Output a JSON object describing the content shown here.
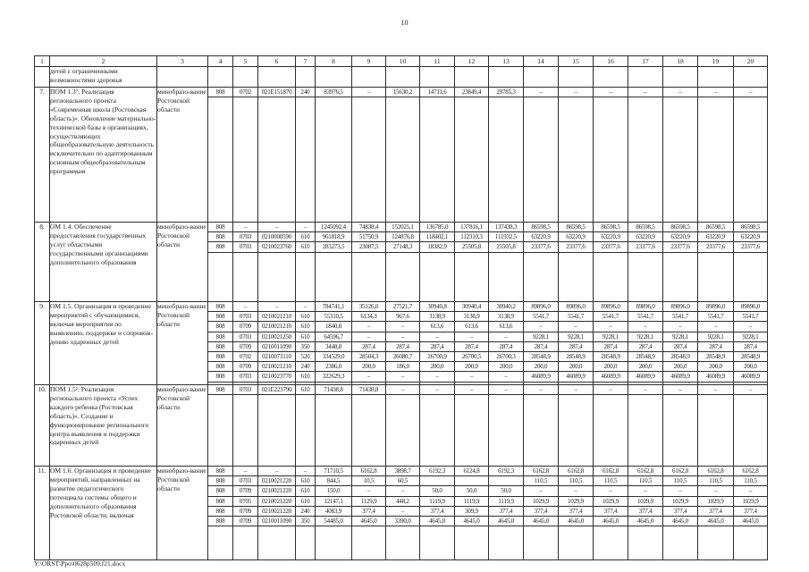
{
  "page": {
    "number": "10",
    "footer": "Y:\\ORST\\Ppo\\0628p509.f21.docx"
  },
  "table": {
    "header_cols": [
      "1",
      "2",
      "3",
      "4",
      "5",
      "6",
      "7",
      "8",
      "9",
      "10",
      "11",
      "12",
      "13",
      "14",
      "15",
      "16",
      "17",
      "18",
      "19",
      "20"
    ],
    "rows": [
      {
        "num": "",
        "name": "детей с ограниченными возможностями здоровья",
        "executor": "",
        "lines": []
      },
      {
        "num": "7.",
        "name": "ПОМ 1.3⁷. Реализация регионального проекта «Современная школа (Ростовская область)». Обновление материально-технической базы в организациях, осуществляющих общеобразовательную деятельность исключительно по адаптированным основным общеобразовательным программам",
        "executor": "минобразо-вание Ростовской области",
        "lines": [
          [
            "808",
            "0702",
            "021E151870",
            "240",
            "83976,5",
            "–",
            "15630,2",
            "14711,6",
            "23849,4",
            "29785,3",
            "–",
            "–",
            "–",
            "–",
            "–",
            "–",
            "–"
          ]
        ]
      },
      {
        "num": "8.",
        "name": "ОМ 1.4. Обеспечение предоставления государственных услуг областными государственными организациями дополнительного образования",
        "executor": "минобразо-вание Ростовской области",
        "lines": [
          [
            "808",
            "–",
            "–",
            "–",
            "1245092,4",
            "74838,4",
            "152025,1",
            "136785,0",
            "137816,1",
            "137438,3",
            "86598,5",
            "86598,5",
            "86598,5",
            "86598,5",
            "86598,5",
            "86598,5",
            "86598,5"
          ],
          [
            "808",
            "0703",
            "0210000590",
            "610",
            "961818,9",
            "51750,9",
            "124876,8",
            "118402,1",
            "112310,3",
            "111932,5",
            "63220,9",
            "63220,9",
            "63220,9",
            "63220,9",
            "63220,9",
            "63220,9",
            "63220,9"
          ],
          [
            "808",
            "0703",
            "0210023760",
            "610",
            "283273,5",
            "23087,5",
            "27148,3",
            "18382,9",
            "25505,8",
            "25505,8",
            "23377,6",
            "23377,6",
            "23377,6",
            "23377,6",
            "23377,6",
            "23377,6",
            "23377,6"
          ]
        ]
      },
      {
        "num": "9.",
        "name": "ОМ 1.5. Организация и проведение мероприятий с обучающимися, включая мероприятия по выявлению, поддержке и сопровож-дению одаренных детей",
        "executor": "минобразо-вание Ростовской области",
        "lines": [
          [
            "808",
            "–",
            "–",
            "–",
            "784741,1",
            "35126,0",
            "27521,7",
            "30940,8",
            "30940,4",
            "30940,2",
            "89896,0",
            "89896,0",
            "89896,0",
            "89896,0",
            "89896,0",
            "89896,0",
            "89896,0"
          ],
          [
            "808",
            "0703",
            "0210021210",
            "610",
            "55310,5",
            "6134,3",
            "967,6",
            "3138,9",
            "3138,9",
            "3138,9",
            "5541,7",
            "5541,7",
            "5541,7",
            "5541,7",
            "5541,7",
            "5541,7",
            "5541,7"
          ],
          [
            "808",
            "0709",
            "0210021210",
            "610",
            "1840,8",
            "–",
            "–",
            "613,6",
            "613,6",
            "613,6",
            "–",
            "–",
            "–",
            "–",
            "–",
            "–",
            "–"
          ],
          [
            "808",
            "0703",
            "0210021250",
            "610",
            "64596,7",
            "–",
            "–",
            "–",
            "–",
            "–",
            "9228,1",
            "9228,1",
            "9228,1",
            "9228,1",
            "9228,1",
            "9228,1",
            "9228,1"
          ],
          [
            "808",
            "0709",
            "0210011090",
            "350",
            "3448,8",
            "287,4",
            "287,4",
            "287,4",
            "287,4",
            "287,4",
            "287,4",
            "287,4",
            "287,4",
            "287,4",
            "287,4",
            "287,4",
            "287,4"
          ],
          [
            "808",
            "0702",
            "0210073110",
            "520",
            "334529,0",
            "28504,3",
            "26080,7",
            "26700,9",
            "26700,5",
            "26700,3",
            "28548,9",
            "28548,9",
            "28548,9",
            "28548,9",
            "28548,9",
            "28548,9",
            "28548,9"
          ],
          [
            "808",
            "0709",
            "0210021210",
            "240",
            "2386,0",
            "200,0",
            "186,0",
            "200,0",
            "200,0",
            "200,0",
            "200,0",
            "200,0",
            "200,0",
            "200,0",
            "200,0",
            "200,0",
            "200,0"
          ],
          [
            "808",
            "0703",
            "0210023770",
            "610",
            "322629,3",
            "–",
            "–",
            "–",
            "–",
            "–",
            "46089,9",
            "46089,9",
            "46089,9",
            "46089,9",
            "46089,9",
            "46089,9",
            "46089,9"
          ]
        ]
      },
      {
        "num": "10.",
        "name": "ПОМ 1.5². Реализация регионального проекта «Успех каждого ребенка (Ростовская область)». Создание и функционирование регионального центра выявления и поддержки одаренных детей",
        "executor": "минобразо-вание Ростовской области",
        "lines": [
          [
            "808",
            "0703",
            "021E223790",
            "610",
            "71438,8",
            "71438,8",
            "–",
            "–",
            "–",
            "–",
            "–",
            "–",
            "–",
            "–",
            "–",
            "–",
            "–"
          ]
        ]
      },
      {
        "num": "11.",
        "name": "ОМ 1.6. Организация и проведение мероприятий, направленных на развитие педагогического потенциала системы общего и дополнительного образования Ростовской области, включая",
        "executor": "минобразо-вание Ростовской области",
        "lines": [
          [
            "808",
            "–",
            "–",
            "–",
            "71710,5",
            "6162,8",
            "3898,7",
            "6192,3",
            "6124,8",
            "6192,3",
            "6162,8",
            "6162,8",
            "6162,8",
            "6162,8",
            "6162,8",
            "6162,8",
            "6162,8"
          ],
          [
            "808",
            "0703",
            "0210021220",
            "610",
            "844,5",
            "10,5",
            "60,5",
            "",
            "",
            "",
            "110,5",
            "110,5",
            "110,5",
            "110,5",
            "110,5",
            "110,5",
            "110,5"
          ],
          [
            "808",
            "0709",
            "0210021220",
            "610",
            "150,0",
            "–",
            "–",
            "50,0",
            "50,0",
            "50,0",
            "–",
            "–",
            "–",
            "–",
            "–",
            "–",
            "–"
          ],
          [
            "808",
            "0705",
            "0210021220",
            "610",
            "12147,1",
            "1129,9",
            "448,2",
            "1119,9",
            "1119,9",
            "1119,9",
            "1029,9",
            "1029,9",
            "1029,9",
            "1029,9",
            "1029,9",
            "1029,9",
            "1029,9"
          ],
          [
            "808",
            "0709",
            "0210021220",
            "240",
            "4083,9",
            "377,4",
            "–",
            "377,4",
            "309,9",
            "377,4",
            "377,4",
            "377,4",
            "377,4",
            "377,4",
            "377,4",
            "377,4",
            "377,4"
          ],
          [
            "808",
            "0709",
            "0210011090",
            "350",
            "54485,0",
            "4645,0",
            "3390,0",
            "4645,0",
            "4645,0",
            "4645,0",
            "4645,0",
            "4645,0",
            "4645,0",
            "4645,0",
            "4645,0",
            "4645,0",
            "4645,0"
          ]
        ]
      }
    ]
  }
}
